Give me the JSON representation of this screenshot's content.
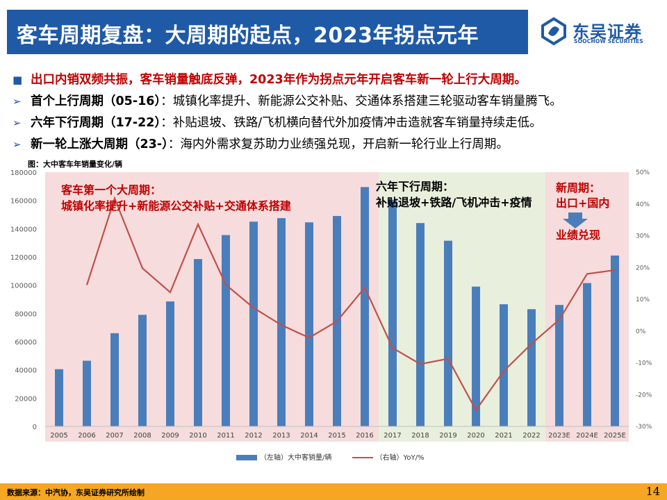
{
  "header": {
    "title": "客车周期复盘：大周期的起点，2023年拐点元年"
  },
  "brand": {
    "name": "东吴证券",
    "subtitle": "SOOCHOW SECURITIES"
  },
  "bullets": {
    "main": "出口内销双频共振，客车销量触底反弹，2023年作为拐点元年开启客车新一轮上行大周期。",
    "items": [
      {
        "label": "首个上行周期（05-16）",
        "text": "：城镇化率提升、新能源公交补贴、交通体系搭建三轮驱动客车销量腾飞。"
      },
      {
        "label": "六年下行周期（17-22）",
        "text": "：补贴退坡、铁路/飞机横向替代外加疫情冲击造就客车销量持续走低。"
      },
      {
        "label": "新一轮上涨大周期（23-）",
        "text": "：海内外需求复苏助力业绩强兑现，开启新一轮行业上行周期。"
      }
    ]
  },
  "figure": {
    "caption": "图：大中客车年销量变化/辆"
  },
  "chart_data": {
    "type": "bar",
    "categories": [
      "2005",
      "2006",
      "2007",
      "2008",
      "2009",
      "2010",
      "2011",
      "2012",
      "2013",
      "2014",
      "2015",
      "2016",
      "2017",
      "2018",
      "2019",
      "2020",
      "2021",
      "2022",
      "2023E",
      "2024E",
      "2025E"
    ],
    "series": [
      {
        "name": "（左轴）大中客销量/辆",
        "type": "bar",
        "axis": "left",
        "values": [
          40500,
          46500,
          66000,
          79000,
          88500,
          118500,
          135500,
          145000,
          147500,
          144500,
          149000,
          169500,
          160500,
          144000,
          131500,
          99000,
          86500,
          83000,
          86000,
          101500,
          121000
        ]
      },
      {
        "name": "（右轴）YoY/%",
        "type": "line",
        "axis": "right",
        "values": [
          null,
          14.5,
          41.8,
          19.8,
          12.2,
          33.6,
          14.6,
          7.3,
          1.9,
          -2.1,
          3.1,
          13.7,
          -5.3,
          -10.4,
          -8.7,
          -24.9,
          -12.6,
          -4.0,
          3.6,
          18.0,
          19.2
        ]
      }
    ],
    "ylim_left": [
      0,
      180000
    ],
    "ylim_right": [
      -30,
      50
    ],
    "yticks_left": [
      "0",
      "20000",
      "40000",
      "60000",
      "80000",
      "100000",
      "120000",
      "140000",
      "160000",
      "180000"
    ],
    "yticks_right": [
      "-30%",
      "-20%",
      "-10%",
      "0%",
      "10%",
      "20%",
      "30%",
      "40%",
      "50%"
    ],
    "bands": [
      {
        "from": "2005",
        "to": "2016",
        "color": "#f6dcdc"
      },
      {
        "from": "2017",
        "to": "2022",
        "color": "#e8efdc"
      },
      {
        "from": "2023E",
        "to": "2025E",
        "color": "#f6dcdc"
      }
    ],
    "annotations": [
      {
        "line1": "客车第一个大周期：",
        "line2": "城镇化率提升+新能源公交补贴+交通体系搭建",
        "color": "#c00000"
      },
      {
        "line1": "六年下行周期：",
        "line2": "补贴退坡+铁路/飞机冲击+疫情",
        "color": "#000000"
      },
      {
        "line1": "新周期：",
        "line2": "出口+国内",
        "line3": "业绩兑现",
        "color": "#c00000"
      }
    ],
    "colors": {
      "bar": "#4a7ebb",
      "line": "#c0504d",
      "arrow": "#4a7ebb"
    },
    "legend": "bottom-center",
    "grid": false
  },
  "footer": {
    "source": "数据来源：中汽协，东吴证券研究所绘制",
    "page": "14"
  }
}
